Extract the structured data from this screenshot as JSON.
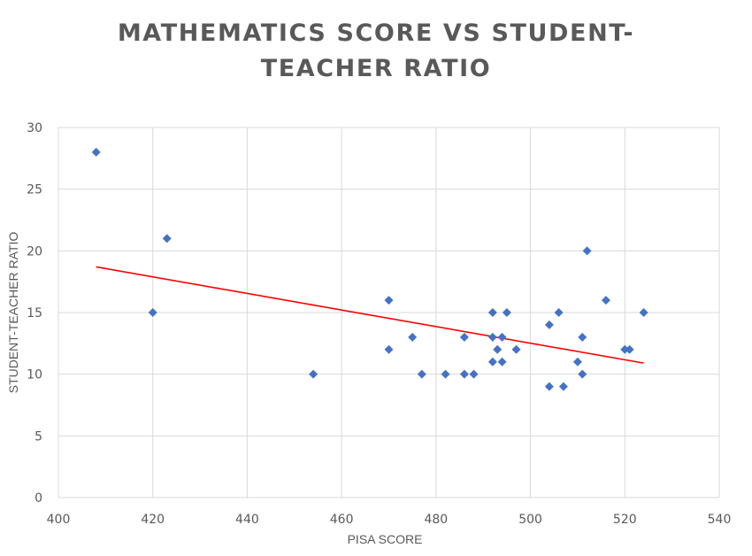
{
  "chart_data": {
    "type": "scatter",
    "title_lines": [
      "MATHEMATICS SCORE VS STUDENT-",
      "TEACHER RATIO"
    ],
    "xlabel": "PISA SCORE",
    "ylabel": "STUDENT-TEACHER RATIO",
    "xlim": [
      400,
      540
    ],
    "ylim": [
      0,
      30
    ],
    "x_ticks": [
      400,
      420,
      440,
      460,
      480,
      500,
      520,
      540
    ],
    "y_ticks": [
      0,
      5,
      10,
      15,
      20,
      25,
      30
    ],
    "grid": true,
    "legend": "none",
    "marker": "diamond",
    "marker_color": "#4472C4",
    "trendline_color": "#FF0000",
    "gridline_color": "#D9D9D9",
    "trendline": {
      "type": "linear",
      "start": [
        408,
        18.7
      ],
      "end": [
        524,
        10.9
      ]
    },
    "points": [
      [
        408,
        28
      ],
      [
        420,
        15
      ],
      [
        423,
        21
      ],
      [
        454,
        10
      ],
      [
        470,
        16
      ],
      [
        470,
        12
      ],
      [
        475,
        13
      ],
      [
        477,
        10
      ],
      [
        482,
        10
      ],
      [
        486,
        13
      ],
      [
        486,
        10
      ],
      [
        488,
        10
      ],
      [
        492,
        15
      ],
      [
        492,
        13
      ],
      [
        492,
        11
      ],
      [
        493,
        12
      ],
      [
        494,
        13
      ],
      [
        494,
        11
      ],
      [
        495,
        15
      ],
      [
        497,
        12
      ],
      [
        504,
        14
      ],
      [
        504,
        9
      ],
      [
        506,
        15
      ],
      [
        507,
        9
      ],
      [
        510,
        11
      ],
      [
        511,
        13
      ],
      [
        511,
        10
      ],
      [
        512,
        20
      ],
      [
        516,
        16
      ],
      [
        520,
        12
      ],
      [
        521,
        12
      ],
      [
        524,
        15
      ]
    ]
  }
}
